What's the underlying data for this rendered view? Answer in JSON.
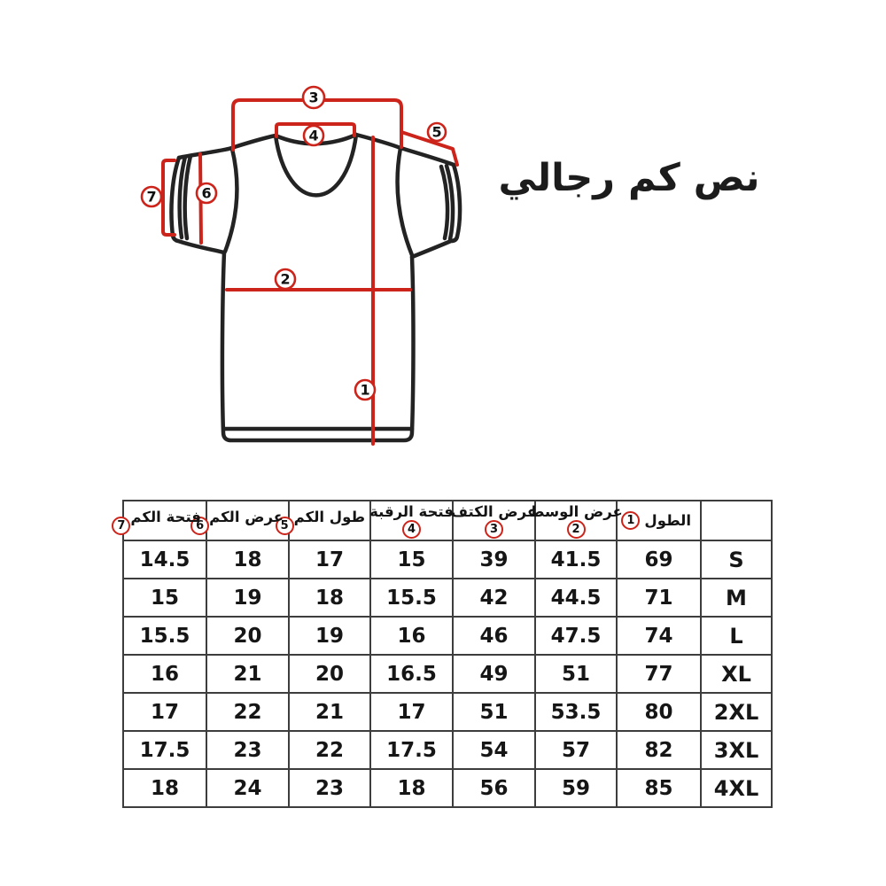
{
  "title": "نص كم رجالي",
  "colors": {
    "accent_red": "#cc241a",
    "line_black": "#232323",
    "table_border": "#3d3d3d",
    "text": "#161616",
    "background": "#ffffff"
  },
  "diagram": {
    "badges": [
      "1",
      "2",
      "3",
      "4",
      "5",
      "6",
      "7"
    ]
  },
  "table": {
    "columns": [
      {
        "label": "",
        "badge": "",
        "badge_layout": ""
      },
      {
        "label": "الطول",
        "badge": "1",
        "badge_layout": "inline-tight"
      },
      {
        "label": "عرض الوسط",
        "badge": "2",
        "badge_layout": "below"
      },
      {
        "label": "عرض الكتف",
        "badge": "3",
        "badge_layout": "below"
      },
      {
        "label": "فتحة الرقبة",
        "badge": "4",
        "badge_layout": "below"
      },
      {
        "label": "طول الكم",
        "badge": "5",
        "badge_layout": "inline"
      },
      {
        "label": "عرض الكم",
        "badge": "6",
        "badge_layout": "inline"
      },
      {
        "label": "فتحة الكم",
        "badge": "7",
        "badge_layout": "inline"
      }
    ],
    "rows": [
      [
        "S",
        "69",
        "41.5",
        "39",
        "15",
        "17",
        "18",
        "14.5"
      ],
      [
        "M",
        "71",
        "44.5",
        "42",
        "15.5",
        "18",
        "19",
        "15"
      ],
      [
        "L",
        "74",
        "47.5",
        "46",
        "16",
        "19",
        "20",
        "15.5"
      ],
      [
        "XL",
        "77",
        "51",
        "49",
        "16.5",
        "20",
        "21",
        "16"
      ],
      [
        "2XL",
        "80",
        "53.5",
        "51",
        "17",
        "21",
        "22",
        "17"
      ],
      [
        "3XL",
        "82",
        "57",
        "54",
        "17.5",
        "22",
        "23",
        "17.5"
      ],
      [
        "4XL",
        "85",
        "59",
        "56",
        "18",
        "23",
        "24",
        "18"
      ]
    ]
  }
}
